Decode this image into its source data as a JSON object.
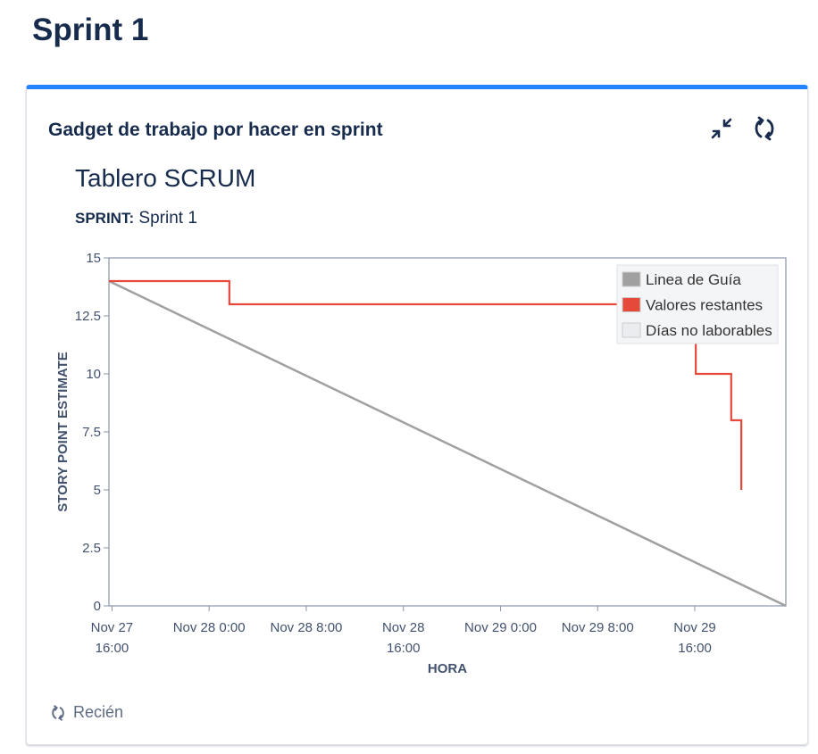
{
  "page": {
    "title": "Sprint 1"
  },
  "gadget": {
    "title": "Gadget de trabajo por hacer en sprint",
    "board_title": "Tablero SCRUM",
    "sprint_label": "SPRINT:",
    "sprint_value": "Sprint 1",
    "footer_text": "Recién",
    "accent_color": "#2684ff"
  },
  "icons": {
    "collapse": "collapse-arrows-icon",
    "refresh": "refresh-icon"
  },
  "chart_data": {
    "type": "line",
    "xlabel": "HORA",
    "ylabel": "STORY POINT ESTIMATE",
    "ylim": [
      0,
      15
    ],
    "y_ticks": [
      "0",
      "2.5",
      "5",
      "7.5",
      "10",
      "12.5",
      "15"
    ],
    "x_ticks": [
      {
        "t": "2023-11-27T16:00",
        "line1": "Nov 27",
        "line2": "16:00"
      },
      {
        "t": "2023-11-28T00:00",
        "line1": "Nov 28 0:00",
        "line2": ""
      },
      {
        "t": "2023-11-28T08:00",
        "line1": "Nov 28 8:00",
        "line2": ""
      },
      {
        "t": "2023-11-28T16:00",
        "line1": "Nov 28",
        "line2": "16:00"
      },
      {
        "t": "2023-11-29T00:00",
        "line1": "Nov 29 0:00",
        "line2": ""
      },
      {
        "t": "2023-11-29T08:00",
        "line1": "Nov 29 8:00",
        "line2": ""
      },
      {
        "t": "2023-11-29T16:00",
        "line1": "Nov 29",
        "line2": "16:00"
      }
    ],
    "xlim": [
      "2023-11-27T15:45",
      "2023-11-29T23:30"
    ],
    "legend_position": "top-right",
    "series": [
      {
        "name": "Linea de Guía",
        "color": "#a0a0a0",
        "points": [
          {
            "x": "2023-11-27T15:45",
            "y": 14
          },
          {
            "x": "2023-11-29T23:30",
            "y": 0
          }
        ]
      },
      {
        "name": "Valores restantes",
        "color": "#e5493a",
        "step": true,
        "points": [
          {
            "x": "2023-11-27T15:45",
            "y": 14
          },
          {
            "x": "2023-11-28T01:40",
            "y": 13
          },
          {
            "x": "2023-11-29T16:05",
            "y": 10
          },
          {
            "x": "2023-11-29T19:00",
            "y": 8
          },
          {
            "x": "2023-11-29T19:50",
            "y": 5
          }
        ]
      }
    ],
    "legend_extra": [
      {
        "name": "Días no laborables",
        "color": "#ebecf0"
      }
    ]
  }
}
